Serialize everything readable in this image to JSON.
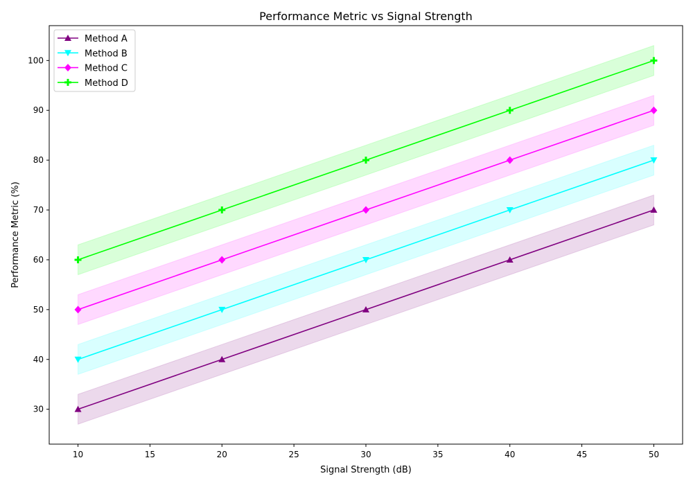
{
  "chart_data": {
    "type": "line",
    "title": "Performance Metric vs Signal Strength",
    "xlabel": "Signal Strength (dB)",
    "ylabel": "Performance Metric (%)",
    "x": [
      10,
      20,
      30,
      40,
      50
    ],
    "xlim": [
      8,
      52
    ],
    "ylim": [
      23,
      107
    ],
    "xticks": [
      10,
      15,
      20,
      25,
      30,
      35,
      40,
      45,
      50
    ],
    "yticks": [
      30,
      40,
      50,
      60,
      70,
      80,
      90,
      100
    ],
    "grid": false,
    "legend_position": "upper-left",
    "band_halfwidth": 3,
    "series": [
      {
        "name": "Method A",
        "values": [
          30,
          40,
          50,
          60,
          70
        ],
        "color": "#800080",
        "marker": "triangle-up"
      },
      {
        "name": "Method B",
        "values": [
          40,
          50,
          60,
          70,
          80
        ],
        "color": "#00ffff",
        "marker": "triangle-down"
      },
      {
        "name": "Method C",
        "values": [
          50,
          60,
          70,
          80,
          90
        ],
        "color": "#ff00ff",
        "marker": "diamond"
      },
      {
        "name": "Method D",
        "values": [
          60,
          70,
          80,
          90,
          100
        ],
        "color": "#00ff00",
        "marker": "plus"
      }
    ]
  }
}
